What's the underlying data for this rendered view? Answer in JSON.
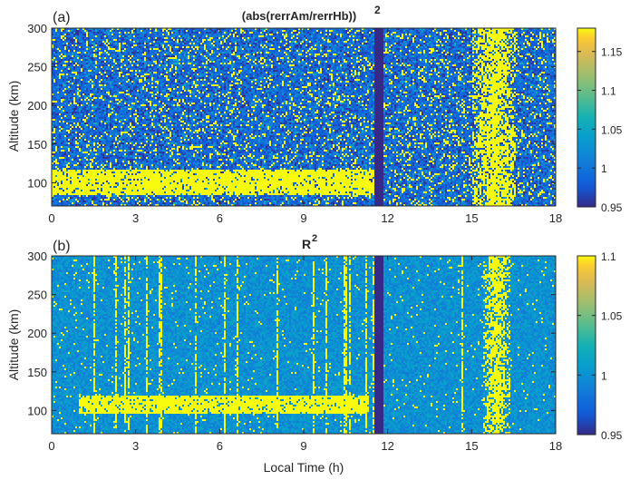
{
  "chart_data": [
    {
      "type": "heatmap",
      "panel_label": "(a)",
      "title_main": "(abs(rerrAm/rerrHb))",
      "title_sup": "2",
      "ylabel": "Altitude (km)",
      "xlabel": "",
      "xlim": [
        0,
        18
      ],
      "ylim": [
        70,
        300
      ],
      "xticks": [
        0,
        3,
        6,
        9,
        12,
        15,
        18
      ],
      "yticks": [
        100,
        150,
        200,
        250,
        300
      ],
      "colorbar": {
        "clim": [
          0.95,
          1.18
        ],
        "ticks": [
          0.95,
          1,
          1.05,
          1.1,
          1.15
        ],
        "tick_labels": [
          "0.95",
          "1",
          "1.05",
          "1.1",
          "1.15"
        ],
        "colormap": "parula"
      },
      "features": {
        "background_level": 0.99,
        "noise": "high",
        "low_altitude_band": {
          "x": [
            0,
            11.5
          ],
          "altitude": [
            85,
            118
          ],
          "level": 1.18
        },
        "data_gap": {
          "x": [
            11.55,
            11.85
          ],
          "level": 0.95
        },
        "high_band": {
          "x": [
            15.0,
            16.6
          ],
          "altitude": [
            70,
            300
          ],
          "level": 1.18
        }
      }
    },
    {
      "type": "heatmap",
      "panel_label": "(b)",
      "title_main": "R",
      "title_sup": "2",
      "ylabel": "Altitude (km)",
      "xlabel": "Local Time (h)",
      "xlim": [
        0,
        18
      ],
      "ylim": [
        70,
        300
      ],
      "xticks": [
        0,
        3,
        6,
        9,
        12,
        15,
        18
      ],
      "yticks": [
        100,
        150,
        200,
        250,
        300
      ],
      "colorbar": {
        "clim": [
          0.95,
          1.1
        ],
        "ticks": [
          0.95,
          1,
          1.05,
          1.1
        ],
        "tick_labels": [
          "0.95",
          "1",
          "1.05",
          "1.1"
        ],
        "colormap": "parula"
      },
      "features": {
        "background_level": 1.0,
        "noise": "low",
        "low_altitude_band": {
          "x": [
            1.0,
            11.3
          ],
          "altitude": [
            95,
            120
          ],
          "level": 1.1
        },
        "data_gap": {
          "x": [
            11.55,
            11.85
          ],
          "level": 0.95
        },
        "high_band": {
          "x": [
            15.4,
            16.4
          ],
          "altitude": [
            70,
            300
          ],
          "level": 1.1
        }
      }
    }
  ]
}
